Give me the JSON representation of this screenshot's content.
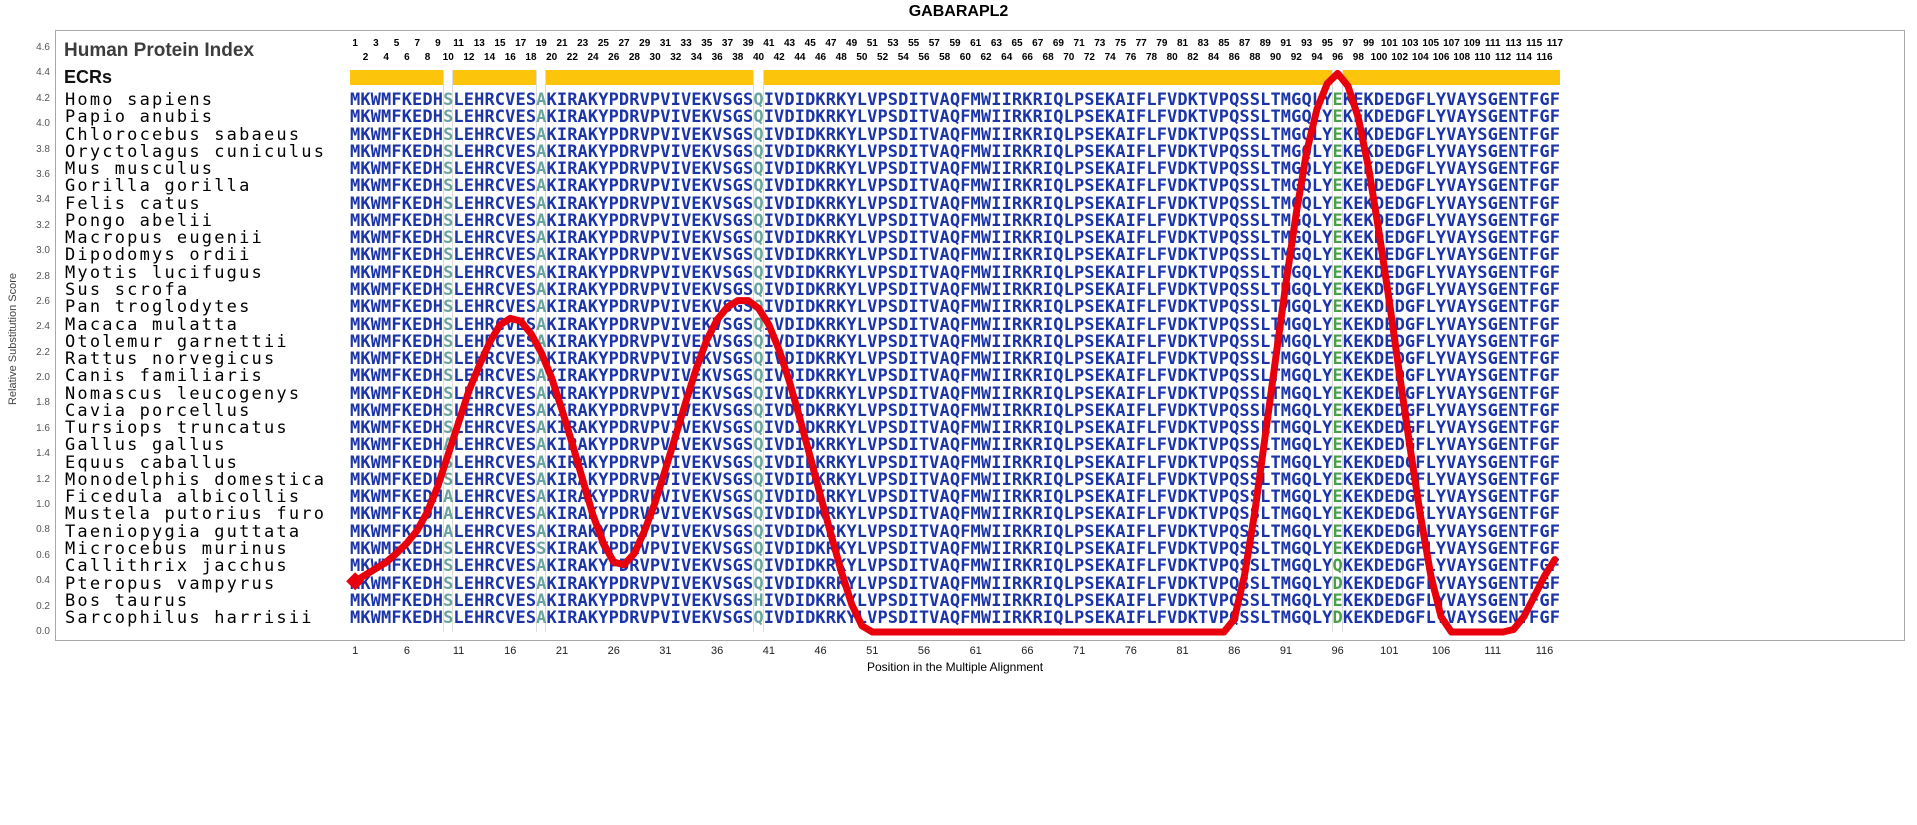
{
  "title": "GABARAPL2",
  "header": {
    "human_protein_index": "Human Protein Index",
    "ecrs": "ECRs"
  },
  "y_axis": {
    "label": "Relative Substitution Score",
    "min": 0.0,
    "max": 4.6,
    "step": 0.2
  },
  "x_axis": {
    "label": "Position in the Multiple Alignment",
    "ticks": [
      1,
      6,
      11,
      16,
      21,
      26,
      31,
      36,
      41,
      46,
      51,
      56,
      61,
      66,
      71,
      76,
      81,
      86,
      91,
      96,
      101,
      106,
      111,
      116
    ]
  },
  "colors": {
    "sequence": "#1b34a8",
    "variant_teal": "#6aa49e",
    "variant_green": "#4aa04a",
    "ecr_bar": "#fcc40a",
    "line": "#e8000d",
    "frame": "#a8a8a8"
  },
  "ecr_segments": [
    [
      1,
      9
    ],
    [
      11,
      18
    ],
    [
      20,
      39
    ],
    [
      41,
      95
    ],
    [
      97,
      117
    ]
  ],
  "alignment": {
    "num_positions": 117,
    "position_numbers": {
      "start": 1,
      "end": 117,
      "layout": "odd-top-row-even-bottom-row"
    },
    "variable_columns": [
      10,
      19,
      40,
      96
    ],
    "consensus": "MKWMFKEDHSLEHRCVESAKIRAKYPDRVPVIVEKVSGSQIVDIDKRKYLVPSDITVAQFMWIIRKRIQLPSEKAIFLFVDKTVPQSSLTMGQLYEKEKDEDGFLYVAYSGENTFGF",
    "species": [
      {
        "name": "Homo sapiens"
      },
      {
        "name": "Papio anubis"
      },
      {
        "name": "Chlorocebus sabaeus"
      },
      {
        "name": "Oryctolagus cuniculus"
      },
      {
        "name": "Mus musculus"
      },
      {
        "name": "Gorilla gorilla"
      },
      {
        "name": "Felis catus"
      },
      {
        "name": "Pongo abelii"
      },
      {
        "name": "Macropus eugenii"
      },
      {
        "name": "Dipodomys ordii"
      },
      {
        "name": "Myotis lucifugus"
      },
      {
        "name": "Sus scrofa"
      },
      {
        "name": "Pan troglodytes"
      },
      {
        "name": "Macaca mulatta"
      },
      {
        "name": "Otolemur garnettii"
      },
      {
        "name": "Rattus norvegicus"
      },
      {
        "name": "Canis familiaris"
      },
      {
        "name": "Nomascus leucogenys"
      },
      {
        "name": "Cavia porcellus"
      },
      {
        "name": "Tursiops truncatus"
      },
      {
        "name": "Gallus gallus",
        "variants": {
          "10": "A"
        }
      },
      {
        "name": "Equus caballus"
      },
      {
        "name": "Monodelphis domestica"
      },
      {
        "name": "Ficedula albicollis",
        "variants": {
          "10": "A"
        }
      },
      {
        "name": "Mustela putorius furo",
        "variants": {
          "10": "A"
        }
      },
      {
        "name": "Taeniopygia guttata",
        "variants": {
          "10": "A"
        }
      },
      {
        "name": "Microcebus murinus",
        "variants": {
          "19": "S"
        }
      },
      {
        "name": "Callithrix jacchus",
        "variants": {
          "96": "Q"
        }
      },
      {
        "name": "Pteropus vampyrus",
        "variants": {
          "96": "D"
        }
      },
      {
        "name": "Bos taurus",
        "variants": {
          "40": "H"
        }
      },
      {
        "name": "Sarcophilus harrisii",
        "variants": {
          "96": "D"
        }
      }
    ]
  },
  "chart_data": {
    "type": "line",
    "title": "GABARAPL2",
    "xlabel": "Position in the Multiple Alignment",
    "ylabel": "Relative Substitution Score",
    "ylim": [
      0,
      4.6
    ],
    "x_start": 1,
    "x_step": 1,
    "x_end": 117,
    "marker": "diamond-at-start",
    "values": [
      0.4,
      0.45,
      0.5,
      0.55,
      0.62,
      0.7,
      0.8,
      0.95,
      1.15,
      1.4,
      1.65,
      1.9,
      2.1,
      2.28,
      2.42,
      2.47,
      2.45,
      2.35,
      2.2,
      2.0,
      1.75,
      1.48,
      1.2,
      0.92,
      0.7,
      0.55,
      0.53,
      0.62,
      0.8,
      1.02,
      1.28,
      1.55,
      1.82,
      2.08,
      2.3,
      2.46,
      2.56,
      2.61,
      2.61,
      2.55,
      2.42,
      2.22,
      1.97,
      1.68,
      1.38,
      1.07,
      0.77,
      0.48,
      0.22,
      0.05,
      0,
      0,
      0,
      0,
      0,
      0,
      0,
      0,
      0,
      0,
      0,
      0,
      0,
      0,
      0,
      0,
      0,
      0,
      0,
      0,
      0,
      0,
      0,
      0,
      0,
      0,
      0,
      0,
      0,
      0,
      0,
      0,
      0,
      0,
      0,
      0.1,
      0.45,
      0.95,
      1.55,
      2.15,
      2.75,
      3.3,
      3.78,
      4.12,
      4.32,
      4.4,
      4.3,
      4.05,
      3.65,
      3.15,
      2.6,
      2.02,
      1.45,
      0.92,
      0.45,
      0.12,
      0,
      0,
      0,
      0,
      0,
      0,
      0.02,
      0.12,
      0.28,
      0.44,
      0.57
    ]
  }
}
